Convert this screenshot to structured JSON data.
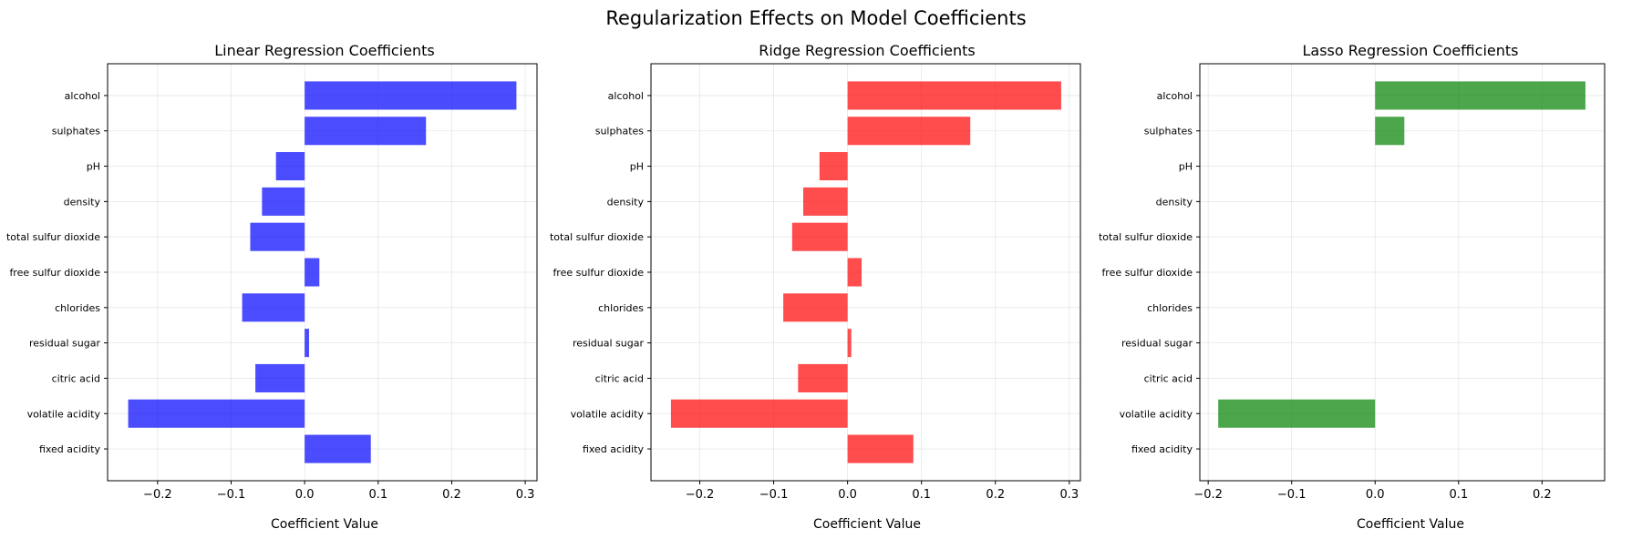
{
  "figure": {
    "title": "Regularization Effects on Model Coefficients"
  },
  "chart_data": [
    {
      "type": "bar",
      "orientation": "horizontal",
      "title": "Linear Regression Coefficients",
      "xlabel": "Coefficient Value",
      "ylabel": "",
      "categories": [
        "fixed acidity",
        "volatile acidity",
        "citric acid",
        "residual sugar",
        "chlorides",
        "free sulfur dioxide",
        "total sulfur dioxide",
        "density",
        "pH",
        "sulphates",
        "alcohol"
      ],
      "values": [
        0.09,
        -0.24,
        -0.067,
        0.006,
        -0.085,
        0.02,
        -0.074,
        -0.058,
        -0.039,
        0.165,
        0.288
      ],
      "color": "#0000ff",
      "xlim": [
        -0.268,
        0.316
      ],
      "xticks": [
        -0.2,
        -0.1,
        0.0,
        0.1,
        0.2,
        0.3
      ],
      "xtick_labels": [
        "−0.2",
        "−0.1",
        "0.0",
        "0.1",
        "0.2",
        "0.3"
      ],
      "grid": true
    },
    {
      "type": "bar",
      "orientation": "horizontal",
      "title": "Ridge Regression Coefficients",
      "xlabel": "Coefficient Value",
      "ylabel": "",
      "categories": [
        "fixed acidity",
        "volatile acidity",
        "citric acid",
        "residual sugar",
        "chlorides",
        "free sulfur dioxide",
        "total sulfur dioxide",
        "density",
        "pH",
        "sulphates",
        "alcohol"
      ],
      "values": [
        0.089,
        -0.239,
        -0.067,
        0.005,
        -0.087,
        0.019,
        -0.075,
        -0.06,
        -0.038,
        0.166,
        0.289
      ],
      "color": "#ff0000",
      "xlim": [
        -0.266,
        0.315
      ],
      "xticks": [
        -0.2,
        -0.1,
        0.0,
        0.1,
        0.2,
        0.3
      ],
      "xtick_labels": [
        "−0.2",
        "−0.1",
        "0.0",
        "0.1",
        "0.2",
        "0.3"
      ],
      "grid": true
    },
    {
      "type": "bar",
      "orientation": "horizontal",
      "title": "Lasso Regression Coefficients",
      "xlabel": "Coefficient Value",
      "ylabel": "",
      "categories": [
        "fixed acidity",
        "volatile acidity",
        "citric acid",
        "residual sugar",
        "chlorides",
        "free sulfur dioxide",
        "total sulfur dioxide",
        "density",
        "pH",
        "sulphates",
        "alcohol"
      ],
      "values": [
        0.0,
        -0.188,
        0.0,
        0.0,
        0.0,
        0.0,
        0.0,
        0.0,
        0.0,
        0.035,
        0.252
      ],
      "color": "#008000",
      "xlim": [
        -0.21,
        0.275
      ],
      "xticks": [
        -0.2,
        -0.1,
        0.0,
        0.1,
        0.2
      ],
      "xtick_labels": [
        "−0.2",
        "−0.1",
        "0.0",
        "0.1",
        "0.2"
      ],
      "grid": true
    }
  ]
}
